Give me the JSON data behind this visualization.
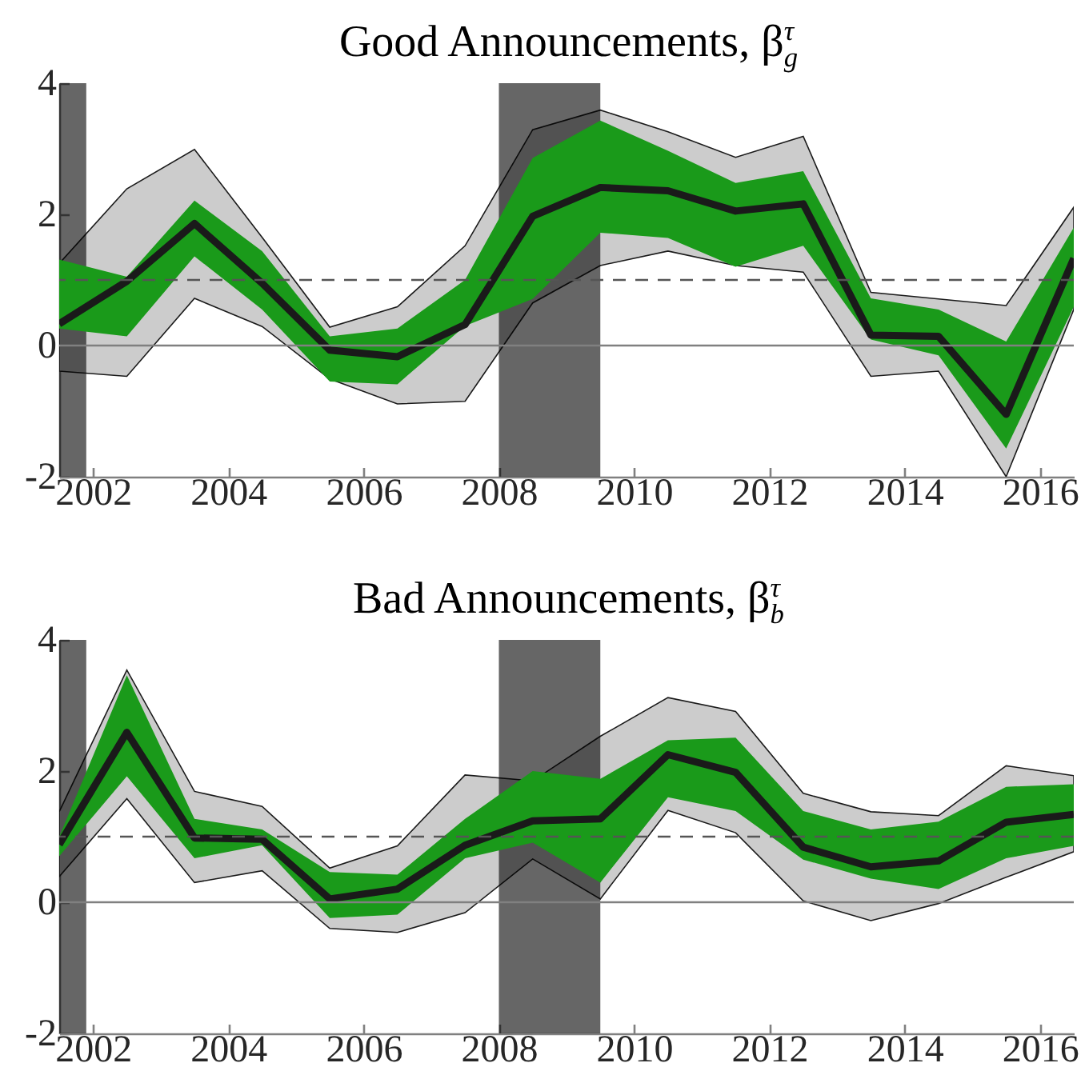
{
  "chart_data": [
    {
      "type": "line",
      "title": "Good Announcements, β$_{g}$$^{τ}$",
      "x": [
        2001.5,
        2002.5,
        2003.5,
        2004.5,
        2005.5,
        2006.5,
        2007.5,
        2008.5,
        2009.5,
        2010.5,
        2011.5,
        2012.5,
        2013.5,
        2014.5,
        2015.5,
        2016.5
      ],
      "xlim": [
        2001.5,
        2016.5
      ],
      "xticks": [
        2002,
        2004,
        2006,
        2008,
        2010,
        2012,
        2014,
        2016
      ],
      "ylim": [
        -2,
        4
      ],
      "yticks": [
        -2,
        0,
        2,
        4
      ],
      "grid": false,
      "series": [
        {
          "color": "#cccccc",
          "line_style": "solid",
          "values": [
            null,
            null,
            null,
            null,
            null,
            null,
            null,
            null,
            null,
            null,
            null,
            null,
            null,
            null,
            null,
            null
          ],
          "lower": [
            -0.39,
            -0.47,
            0.72,
            0.29,
            -0.51,
            -0.89,
            -0.85,
            0.65,
            1.22,
            1.44,
            1.22,
            1.12,
            -0.47,
            -0.39,
            -2,
            0.55
          ],
          "upper": [
            1.25,
            2.39,
            2.99,
            1.65,
            0.28,
            0.59,
            1.52,
            3.29,
            3.59,
            3.26,
            2.87,
            3.19,
            0.81,
            0.71,
            0.61,
            2.11
          ]
        },
        {
          "color": "#1a9a1a",
          "values": [
            null,
            null,
            null,
            null,
            null,
            null,
            null,
            null,
            null,
            null,
            null,
            null,
            null,
            null,
            null,
            null
          ],
          "lower": [
            0.26,
            0.14,
            1.36,
            0.55,
            -0.55,
            -0.59,
            0.3,
            0.71,
            1.72,
            1.64,
            1.2,
            1.52,
            0.09,
            -0.15,
            -1.57,
            0.59
          ],
          "upper": [
            1.31,
            1.05,
            2.21,
            1.44,
            0.14,
            0.26,
            1.0,
            2.86,
            3.43,
            2.97,
            2.48,
            2.66,
            0.72,
            0.55,
            0.06,
            1.8
          ]
        },
        {
          "color": "#1a1a1a",
          "values": [
            0.33,
            0.98,
            1.86,
            0.95,
            -0.07,
            -0.17,
            0.32,
            1.97,
            2.41,
            2.36,
            2.05,
            2.16,
            0.16,
            0.14,
            -1.05,
            1.33
          ]
        }
      ],
      "ref_lines": [
        {
          "axis": "y",
          "value": 0,
          "color": "#808080",
          "line_style": "solid"
        },
        {
          "axis": "y",
          "value": 1,
          "color": "#555555",
          "line_style": "dashed"
        }
      ],
      "bands": [
        {
          "axis": "x",
          "from": 2001.5,
          "to": 2001.9,
          "color": "#666666"
        },
        {
          "axis": "x",
          "from": 2008,
          "to": 2009.5,
          "color": "#666666"
        }
      ]
    },
    {
      "type": "line",
      "title": "Bad Announcements, β$_{b}$$^{τ}$",
      "x": [
        2001.5,
        2002.5,
        2003.5,
        2004.5,
        2005.5,
        2006.5,
        2007.5,
        2008.5,
        2009.5,
        2010.5,
        2011.5,
        2012.5,
        2013.5,
        2014.5,
        2015.5,
        2016.5
      ],
      "xlim": [
        2001.5,
        2016.5
      ],
      "xticks": [
        2002,
        2004,
        2006,
        2008,
        2010,
        2012,
        2014,
        2016
      ],
      "ylim": [
        -2,
        4
      ],
      "yticks": [
        -2,
        0,
        2,
        4
      ],
      "grid": false,
      "series": [
        {
          "color": "#cccccc",
          "line_style": "solid",
          "values": [
            null,
            null,
            null,
            null,
            null,
            null,
            null,
            null,
            null,
            null,
            null,
            null,
            null,
            null,
            null,
            null
          ],
          "lower": [
            0.39,
            1.58,
            0.3,
            0.48,
            -0.4,
            -0.46,
            -0.16,
            0.66,
            0.05,
            1.4,
            1.06,
            0.02,
            -0.28,
            -0.02,
            0.38,
            0.77
          ],
          "upper": [
            1.38,
            3.54,
            1.69,
            1.46,
            0.52,
            0.86,
            1.94,
            1.85,
            2.53,
            3.12,
            2.91,
            1.66,
            1.38,
            1.32,
            2.08,
            1.93
          ]
        },
        {
          "color": "#1a9a1a",
          "values": [
            null,
            null,
            null,
            null,
            null,
            null,
            null,
            null,
            null,
            null,
            null,
            null,
            null,
            null,
            null,
            null
          ],
          "lower": [
            0.7,
            1.92,
            0.67,
            0.87,
            -0.24,
            -0.19,
            0.67,
            0.91,
            0.3,
            1.6,
            1.39,
            0.65,
            0.36,
            0.2,
            0.67,
            0.86
          ],
          "upper": [
            1.0,
            3.46,
            1.27,
            1.11,
            0.46,
            0.42,
            1.27,
            2.0,
            1.88,
            2.47,
            2.51,
            1.39,
            1.11,
            1.23,
            1.76,
            1.8
          ]
        },
        {
          "color": "#1a1a1a",
          "values": [
            0.88,
            2.59,
            0.98,
            0.96,
            0.05,
            0.2,
            0.87,
            1.24,
            1.27,
            2.25,
            1.98,
            0.84,
            0.54,
            0.63,
            1.22,
            1.34
          ]
        }
      ],
      "ref_lines": [
        {
          "axis": "y",
          "value": 0,
          "color": "#808080",
          "line_style": "solid"
        },
        {
          "axis": "y",
          "value": 1,
          "color": "#555555",
          "line_style": "dashed"
        }
      ],
      "bands": [
        {
          "axis": "x",
          "from": 2001.5,
          "to": 2001.9,
          "color": "#666666"
        },
        {
          "axis": "x",
          "from": 2008,
          "to": 2009.5,
          "color": "#666666"
        }
      ]
    }
  ]
}
